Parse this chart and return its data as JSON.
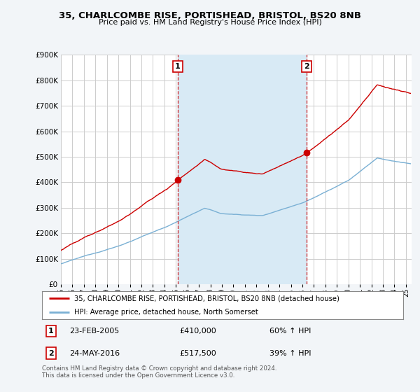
{
  "title": "35, CHARLCOMBE RISE, PORTISHEAD, BRISTOL, BS20 8NB",
  "subtitle": "Price paid vs. HM Land Registry's House Price Index (HPI)",
  "ylim": [
    0,
    900000
  ],
  "yticks": [
    0,
    100000,
    200000,
    300000,
    400000,
    500000,
    600000,
    700000,
    800000,
    900000
  ],
  "xlim_start": 1995.0,
  "xlim_end": 2025.5,
  "bg_color": "#f2f5f8",
  "plot_bg": "#ffffff",
  "grid_color": "#cccccc",
  "sale1_x": 2005.14,
  "sale1_y": 410000,
  "sale1_date": "23-FEB-2005",
  "sale1_price": "£410,000",
  "sale1_hpi": "60% ↑ HPI",
  "sale2_x": 2016.39,
  "sale2_y": 517500,
  "sale2_date": "24-MAY-2016",
  "sale2_price": "£517,500",
  "sale2_hpi": "39% ↑ HPI",
  "line1_color": "#cc0000",
  "line2_color": "#7ab0d4",
  "vline_color": "#cc0000",
  "fill_color": "#d8eaf5",
  "legend1_label": "35, CHARLCOMBE RISE, PORTISHEAD, BRISTOL, BS20 8NB (detached house)",
  "legend2_label": "HPI: Average price, detached house, North Somerset",
  "footnote": "Contains HM Land Registry data © Crown copyright and database right 2024.\nThis data is licensed under the Open Government Licence v3.0.",
  "xtick_years": [
    1995,
    1996,
    1997,
    1998,
    1999,
    2000,
    2001,
    2002,
    2003,
    2004,
    2005,
    2006,
    2007,
    2008,
    2009,
    2010,
    2011,
    2012,
    2013,
    2014,
    2015,
    2016,
    2017,
    2018,
    2019,
    2020,
    2021,
    2022,
    2023,
    2024,
    2025
  ]
}
